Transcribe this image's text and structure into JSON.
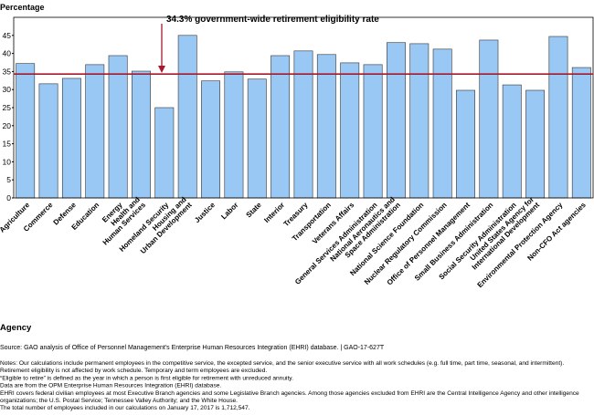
{
  "chart_data": {
    "type": "bar",
    "y_label": "Percentage",
    "x_label": "Agency",
    "annotation": "34.3% government-wide retirement eligibility rate",
    "reference_line": 34.3,
    "reference_color": "#a6192e",
    "categories": [
      "Agriculture",
      "Commerce",
      "Defense",
      "Education",
      "Energy",
      "Health and\nHuman Services",
      "Homeland Security",
      "Housing and\nUrban Development",
      "Justice",
      "Labor",
      "State",
      "Interior",
      "Treasury",
      "Transportation",
      "Veterans Affairs",
      "General Services Administration",
      "National Aeronautics and\nSpace Administration",
      "National Science Foundation",
      "Nuclear Regulatory Commission",
      "Office of Personnel Management",
      "Small Business Administration",
      "Social Security Administration",
      "United States Agency for\nInternational Development",
      "Environmental Protection Agency",
      "Non-CFO Act agencies"
    ],
    "values": [
      37.2,
      31.6,
      33.1,
      36.9,
      39.4,
      35.1,
      25.0,
      45.0,
      32.4,
      34.9,
      32.9,
      39.4,
      40.7,
      39.7,
      37.4,
      36.9,
      43.0,
      42.7,
      41.2,
      29.8,
      43.7,
      31.3,
      29.8,
      44.7,
      36.1
    ],
    "color": "#99c8f5",
    "ylim": [
      0,
      50
    ],
    "yticks": [
      0,
      5,
      10,
      15,
      20,
      25,
      30,
      35,
      40,
      45
    ],
    "source": "Source: GAO analysis of Office of Personnel Management's Enterprise Human Resources Integration (EHRI) database. | GAO-17-627T",
    "notes": [
      "Notes: Our calculations include permanent employees in the competitive service, the excepted service, and the senior executive service with all work schedules (e.g. full time, part time, seasonal, and intermittent).",
      "Retirement eligibility is not affected by work schedule. Temporary and term employees are excluded.",
      "“Eligible to retire” is defined as the year in which a person is first eligible for retirement with unreduced annuity.",
      "Data are from the OPM Enterprise Human Resources Integration (EHRI) database.",
      "EHRI covers federal civilian employees at most Executive Branch agencies and some Legislative Branch agencies. Among those agencies excluded from EHRI are the Central Intelligence Agency and other intelligence",
      "organizations; the U.S. Postal Service; Tennessee Valley Authority; and the White House.",
      "The total number of employees included in our calculations on January 17, 2017 is 1,712,547."
    ]
  }
}
